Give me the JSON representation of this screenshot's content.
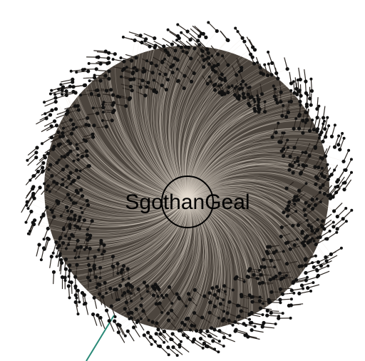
{
  "center_node": {
    "label": "SgothanGeal"
  }
}
